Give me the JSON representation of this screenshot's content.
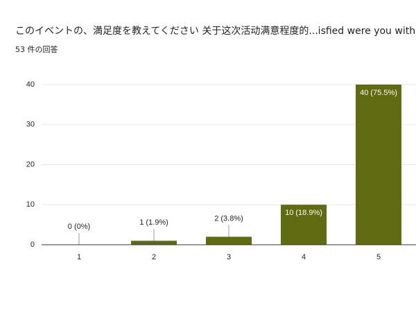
{
  "chart_data": {
    "type": "bar",
    "title": "このイベントの、満足度を教えてください 关于这次活动满意程度的...isfied were you with this event?",
    "subtitle": "53 件の回答",
    "categories": [
      "1",
      "2",
      "3",
      "4",
      "5"
    ],
    "values": [
      0,
      1,
      2,
      10,
      40
    ],
    "value_labels": [
      "0 (0%)",
      "1 (1.9%)",
      "2 (3.8%)",
      "10 (18.9%)",
      "40 (75.5%)"
    ],
    "color": "#5f6b10",
    "ylim": [
      0,
      40
    ],
    "yticks": [
      0,
      10,
      20,
      30,
      40
    ],
    "grid": true
  }
}
